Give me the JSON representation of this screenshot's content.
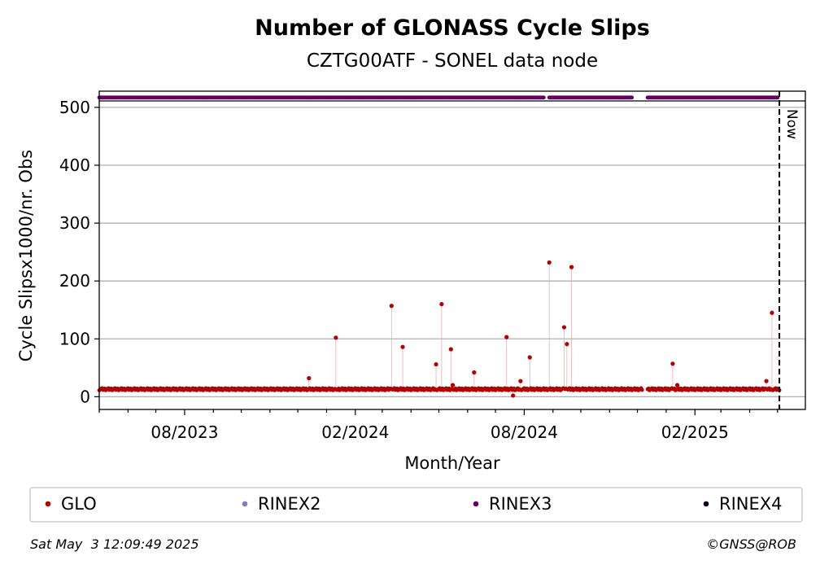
{
  "chart_data": {
    "type": "scatter",
    "title": "Number of GLONASS Cycle Slips",
    "subtitle": "CZTG00ATF - SONEL data node",
    "xlabel": "Month/Year",
    "ylabel": "Cycle Slipsx1000/nr. Obs",
    "x_range": [
      "2023-05-01",
      "2025-05-31"
    ],
    "ylim": [
      -22,
      528
    ],
    "y_ticks": [
      0,
      100,
      200,
      300,
      400,
      500
    ],
    "x_tick_labels": [
      {
        "date": "2023-08-01",
        "label": "08/2023"
      },
      {
        "date": "2024-02-01",
        "label": "02/2024"
      },
      {
        "date": "2024-08-01",
        "label": "08/2024"
      },
      {
        "date": "2025-02-01",
        "label": "02/2025"
      }
    ],
    "grid": "horizontal",
    "now_label": "Now",
    "now_date": "2025-05-03",
    "series": [
      {
        "name": "GLO",
        "color": "#b30000",
        "baseline": 13,
        "range": [
          "2023-05-01",
          "2025-05-03"
        ],
        "gap": [
          "2024-12-07",
          "2024-12-11"
        ],
        "spikes": [
          {
            "x": "2023-12-13",
            "y": 32
          },
          {
            "x": "2024-01-11",
            "y": 102
          },
          {
            "x": "2024-03-11",
            "y": 157
          },
          {
            "x": "2024-03-23",
            "y": 86
          },
          {
            "x": "2024-04-28",
            "y": 56
          },
          {
            "x": "2024-05-04",
            "y": 160
          },
          {
            "x": "2024-05-14",
            "y": 82
          },
          {
            "x": "2024-05-16",
            "y": 20
          },
          {
            "x": "2024-06-08",
            "y": 42
          },
          {
            "x": "2024-07-13",
            "y": 103
          },
          {
            "x": "2024-07-20",
            "y": 2
          },
          {
            "x": "2024-07-28",
            "y": 27
          },
          {
            "x": "2024-08-07",
            "y": 68
          },
          {
            "x": "2024-08-28",
            "y": 232
          },
          {
            "x": "2024-09-13",
            "y": 120
          },
          {
            "x": "2024-09-16",
            "y": 91
          },
          {
            "x": "2024-09-21",
            "y": 224
          },
          {
            "x": "2025-01-08",
            "y": 57
          },
          {
            "x": "2025-01-13",
            "y": 20
          },
          {
            "x": "2025-04-19",
            "y": 27
          },
          {
            "x": "2025-04-25",
            "y": 145
          }
        ]
      },
      {
        "name": "RINEX2",
        "color": "#7f7fbf",
        "points": []
      },
      {
        "name": "RINEX3",
        "color": "#660066",
        "value": 517,
        "segments": [
          [
            "2023-05-01",
            "2024-08-22"
          ],
          [
            "2024-08-28",
            "2024-11-25"
          ],
          [
            "2024-12-12",
            "2025-05-01"
          ]
        ]
      },
      {
        "name": "RINEX4",
        "color": "#1a0020",
        "points": []
      }
    ]
  },
  "footer": {
    "timestamp": "Sat May  3 12:09:49 2025",
    "credit": "©GNSS@ROB"
  }
}
